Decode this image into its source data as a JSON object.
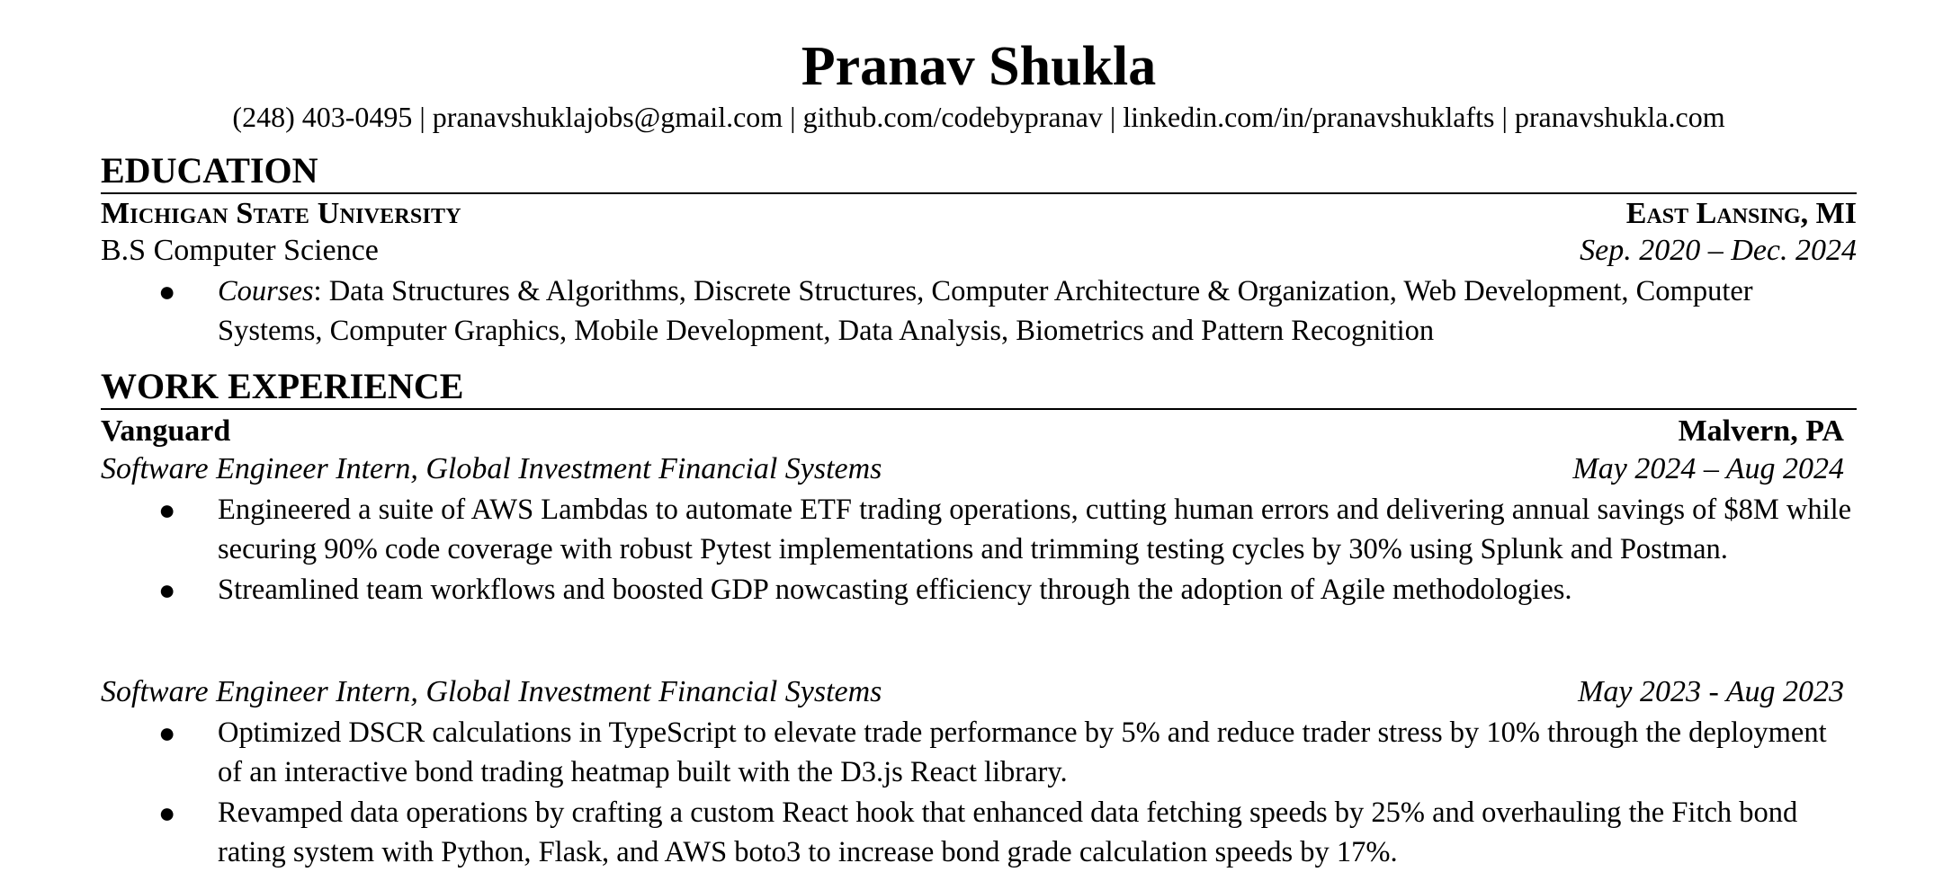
{
  "header": {
    "name": "Pranav Shukla",
    "phone": "(248) 403-0495",
    "email": "pranavshuklajobs@gmail.com",
    "github": "github.com/codebypranav",
    "linkedin": "linkedin.com/in/pranavshuklafts",
    "website": "pranavshukla.com",
    "separator": "|"
  },
  "education": {
    "heading": "EDUCATION",
    "school": "Michigan State University",
    "location": "East Lansing, MI",
    "degree": "B.S Computer Science",
    "dates": "Sep. 2020 – Dec. 2024",
    "courses_label": "Courses",
    "courses": ": Data Structures & Algorithms, Discrete Structures, Computer Architecture & Organization, Web Development, Computer Systems, Computer Graphics, Mobile Development, Data Analysis, Biometrics and Pattern Recognition"
  },
  "work": {
    "heading": "WORK EXPERIENCE",
    "company": "Vanguard",
    "location": "Malvern, PA",
    "roles": [
      {
        "title": "Software Engineer Intern, Global Investment Financial Systems",
        "dates": "May 2024 – Aug 2024",
        "bullets": [
          "Engineered a suite of AWS Lambdas to automate ETF trading operations, cutting human errors and delivering annual savings of $8M while securing 90% code coverage with robust Pytest implementations and trimming testing cycles by 30% using Splunk and Postman.",
          "Streamlined team workflows and boosted GDP nowcasting efficiency through the adoption of Agile methodologies."
        ]
      },
      {
        "title": "Software Engineer Intern, Global Investment Financial Systems",
        "dates": "May 2023 - Aug 2023",
        "bullets": [
          "Optimized DSCR calculations in TypeScript to elevate trade performance by 5% and reduce trader stress by 10% through the deployment of an interactive bond trading heatmap built with the D3.js React library.",
          "Revamped data operations by crafting a custom React hook that enhanced data fetching speeds by 25% and overhauling the Fitch bond rating system with Python, Flask, and AWS boto3 to increase bond grade calculation speeds by 17%."
        ]
      }
    ]
  }
}
